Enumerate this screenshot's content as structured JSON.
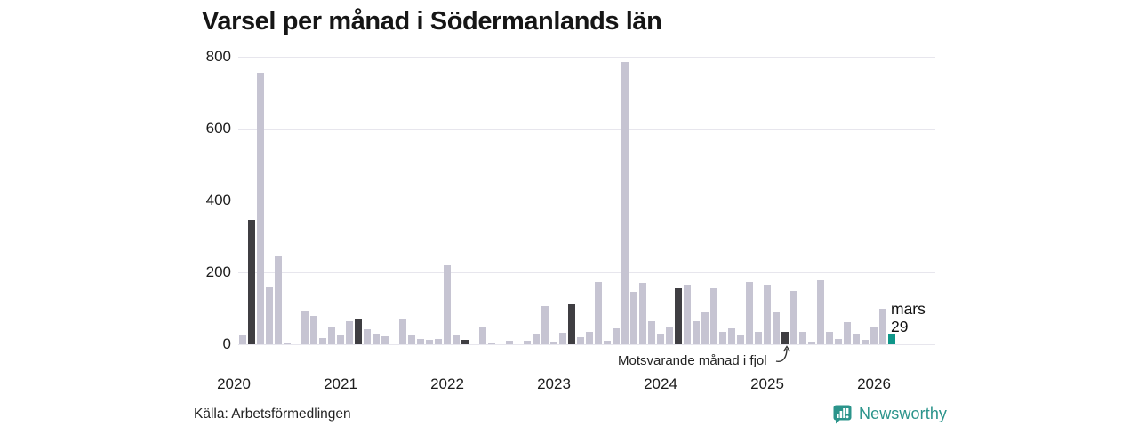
{
  "title": "Varsel per månad i Södermanlands län",
  "source": "Källa: Arbetsförmedlingen",
  "brand": {
    "name": "Newsworthy"
  },
  "annotation": {
    "text": "Motsvarande månad i fjol"
  },
  "colors": {
    "bar_default": "#c6c4d2",
    "bar_highlight": "#3f3e42",
    "bar_current": "#0f9689",
    "grid": "#e7e6ed",
    "text": "#1c1c1c",
    "brand_teal": "#2b948b"
  },
  "chart_data": {
    "type": "bar",
    "title": "Varsel per månad i Södermanlands län",
    "x_start": "2020-01",
    "x_end": "2026-03",
    "year_labels": [
      "2020",
      "2021",
      "2022",
      "2023",
      "2024",
      "2025",
      "2026"
    ],
    "yticks": [
      0,
      200,
      400,
      600,
      800
    ],
    "ylim": [
      0,
      800
    ],
    "grid": true,
    "legend": "none",
    "values_by_year": {
      "2020": [
        0,
        25,
        345,
        755,
        160,
        245,
        5,
        0,
        95,
        80,
        18,
        47
      ],
      "2021": [
        26,
        63,
        72,
        43,
        30,
        21,
        0,
        72,
        28,
        16,
        12,
        16
      ],
      "2022": [
        220,
        26,
        12,
        0,
        47,
        6,
        0,
        10,
        0,
        9,
        30,
        105
      ],
      "2023": [
        7,
        32,
        111,
        20,
        35,
        173,
        11,
        44,
        785,
        145,
        170,
        65
      ],
      "2024": [
        30,
        50,
        155,
        165,
        63,
        92,
        155,
        35,
        45,
        25,
        173,
        35
      ],
      "2025": [
        165,
        90,
        35,
        147,
        35,
        8,
        177,
        35,
        15,
        61,
        30,
        12
      ],
      "2026": [
        50,
        100,
        29
      ]
    },
    "highlight": {
      "month_index": 2,
      "month_name": "mars",
      "note": "Motsvarande månad i fjol",
      "applies_to_years": [
        "2020",
        "2021",
        "2022",
        "2023",
        "2024",
        "2025"
      ]
    },
    "current": {
      "year": "2026",
      "month_index": 2,
      "label": "mars",
      "value": 29
    }
  }
}
